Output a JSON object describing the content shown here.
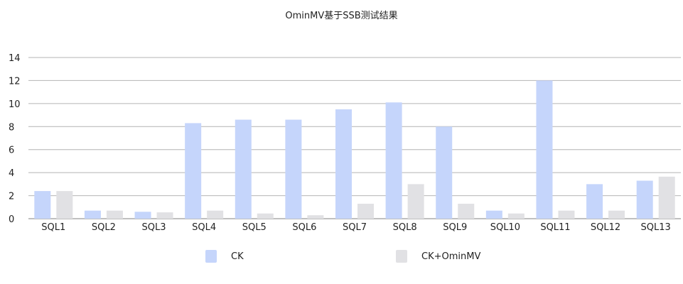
{
  "chart_data": {
    "type": "bar",
    "title": "OminMV基于SSB测试结果",
    "categories": [
      "SQL1",
      "SQL2",
      "SQL3",
      "SQL4",
      "SQL5",
      "SQL6",
      "SQL7",
      "SQL8",
      "SQL9",
      "SQL10",
      "SQL11",
      "SQL12",
      "SQL13"
    ],
    "series": [
      {
        "name": "CK",
        "color": "#c5d5fb",
        "values": [
          2.4,
          0.7,
          0.6,
          8.3,
          8.6,
          8.6,
          9.5,
          10.1,
          8.0,
          0.7,
          12.0,
          3.0,
          3.3
        ]
      },
      {
        "name": "CK+OminMV",
        "color": "#e1e1e4",
        "values": [
          2.4,
          0.7,
          0.55,
          0.7,
          0.45,
          0.3,
          1.3,
          3.0,
          1.3,
          0.45,
          0.7,
          0.7,
          3.65
        ]
      }
    ],
    "ylim": [
      0,
      14
    ],
    "yticks": [
      0,
      2,
      4,
      6,
      8,
      10,
      12,
      14
    ],
    "grid": true,
    "legend": "bottom",
    "xlabel": "",
    "ylabel": ""
  }
}
